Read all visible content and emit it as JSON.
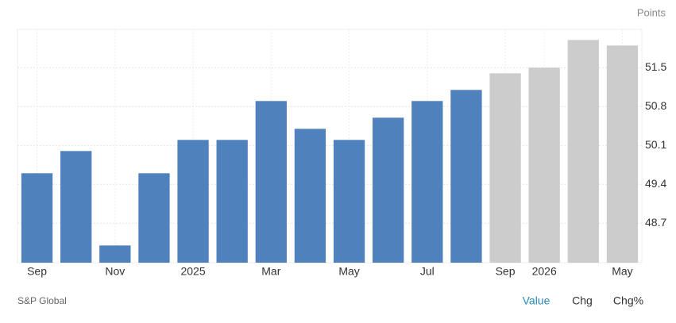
{
  "chart_data": {
    "type": "bar",
    "unit_label": "Points",
    "source": "S&P Global",
    "buttons": [
      "Value",
      "Chg",
      "Chg%"
    ],
    "active_button": 0,
    "categories": [
      "Sep",
      null,
      "Nov",
      null,
      "2025",
      null,
      "Mar",
      null,
      "May",
      null,
      "Jul",
      null,
      "Sep",
      "2026",
      null,
      "May"
    ],
    "values": [
      49.6,
      50.0,
      48.3,
      49.6,
      50.2,
      50.2,
      50.9,
      50.4,
      50.2,
      50.6,
      50.9,
      51.1,
      51.4,
      51.5,
      52.0,
      51.9
    ],
    "colors": [
      "#4f81bd",
      "#4f81bd",
      "#4f81bd",
      "#4f81bd",
      "#4f81bd",
      "#4f81bd",
      "#4f81bd",
      "#4f81bd",
      "#4f81bd",
      "#4f81bd",
      "#4f81bd",
      "#4f81bd",
      "#cccccc",
      "#cccccc",
      "#cccccc",
      "#cccccc"
    ],
    "ylim": [
      47.99,
      52.19
    ],
    "yticks": [
      48.7,
      49.4,
      50.1,
      50.8,
      51.5
    ],
    "grid": true
  }
}
